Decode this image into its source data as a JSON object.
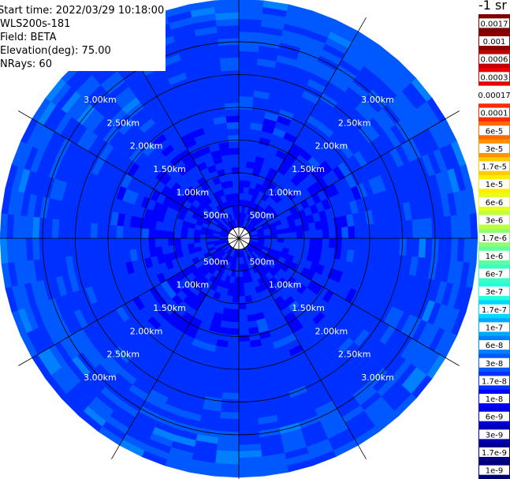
{
  "info": {
    "start_time": "Start time: 2022/03/29 10:18:00",
    "instrument": "WLS200s-181",
    "field": "Field: BETA",
    "elevation": "Elevation(deg): 75.00",
    "nrays": "NRays: 60"
  },
  "colorbar": {
    "units_label": "-1 sr",
    "ticks": [
      "0.0017",
      "0.001",
      "0.0006",
      "0.0003",
      "0.00017",
      "0.0001",
      "6e-5",
      "3e-5",
      "1.7e-5",
      "1e-5",
      "6e-6",
      "3e-6",
      "1.7e-6",
      "1e-6",
      "6e-7",
      "3e-7",
      "1.7e-7",
      "1e-7",
      "6e-8",
      "3e-8",
      "1.7e-8",
      "1e-8",
      "6e-9",
      "3e-9",
      "1.7e-9",
      "1e-9"
    ],
    "colors": [
      "#7f0000",
      "#8b0000",
      "#c00000",
      "#e80000",
      "#ffffff",
      "#ff2a00",
      "#ff6a00",
      "#ff9400",
      "#ffcc00",
      "#ffee00",
      "#e6ff1a",
      "#c0ff40",
      "#90ff70",
      "#60ff9a",
      "#3affc0",
      "#20ffe0",
      "#00d8ff",
      "#00a8ff",
      "#0080ff",
      "#0058ff",
      "#0030ff",
      "#0000ff",
      "#0000d8",
      "#0000b0",
      "#00008a",
      "#000070"
    ]
  },
  "chart_data": {
    "type": "heatmap",
    "projection": "polar (PPI)",
    "range_rings_km": [
      0.5,
      1.0,
      1.5,
      2.0,
      2.5,
      3.0
    ],
    "ring_labels": [
      "500m",
      "1.00km",
      "1.50km",
      "2.00km",
      "2.50km",
      "3.00km"
    ],
    "max_range_km": 3.65,
    "min_range_km": 0.1,
    "num_rays": 60,
    "spoke_angles_deg": [
      0,
      30,
      60,
      90,
      120,
      150,
      180,
      210,
      240,
      270,
      300,
      330
    ],
    "field": "BETA",
    "elevation_deg": 75.0,
    "value_range": [
      1e-09,
      0.0017
    ],
    "dominant_values": "mostly 1e-8 to 6e-8 (blue), with 1e-7 to 1.7e-7 patches (lighter blue) at far range",
    "grid": true
  },
  "colors": {
    "blue_deep": "#0000ff",
    "blue_mid": "#0030ff",
    "blue_light": "#0058ff",
    "blue_lighter": "#0080ff",
    "cyan_blue": "#00a8ff"
  }
}
